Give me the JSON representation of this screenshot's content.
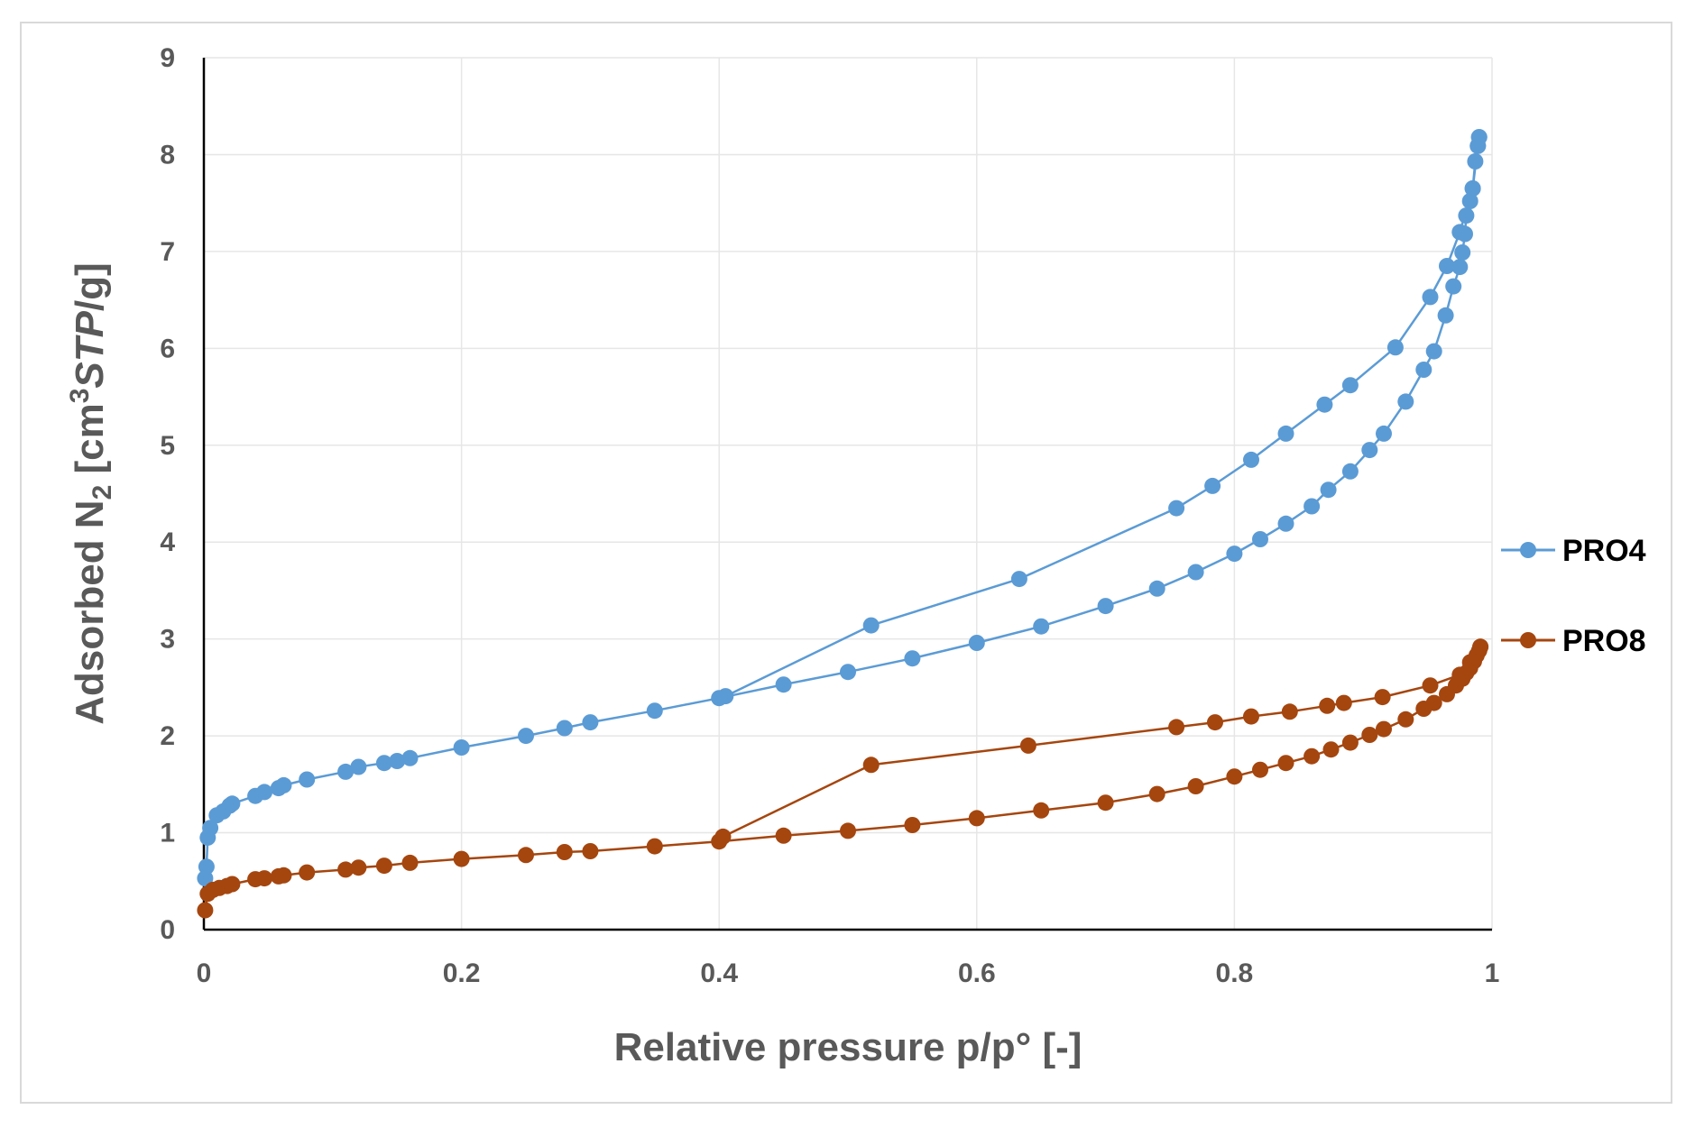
{
  "chart_data": {
    "type": "line",
    "title": "",
    "xlabel": "Relative pressure p/p° [-]",
    "ylabel_main": "Adsorbed N",
    "ylabel_sub": "2",
    "ylabel_unit_open": " [cm",
    "ylabel_sup": "3",
    "ylabel_italic": "STP",
    "ylabel_unit_close": "/g]",
    "xlim": [
      0,
      1
    ],
    "ylim": [
      0,
      9
    ],
    "xticks": [
      "0",
      "0.2",
      "0.4",
      "0.6",
      "0.8",
      "1"
    ],
    "xtick_values": [
      0,
      0.2,
      0.4,
      0.6,
      0.8,
      1
    ],
    "yticks": [
      "0",
      "1",
      "2",
      "3",
      "4",
      "5",
      "6",
      "7",
      "8",
      "9"
    ],
    "ytick_values": [
      0,
      1,
      2,
      3,
      4,
      5,
      6,
      7,
      8,
      9
    ],
    "grid": true,
    "legend": "right",
    "series": [
      {
        "name": "PRO4",
        "color": "#5b9bd5",
        "points": [
          [
            0.001,
            0.53
          ],
          [
            0.002,
            0.65
          ],
          [
            0.003,
            0.95
          ],
          [
            0.005,
            1.05
          ],
          [
            0.01,
            1.18
          ],
          [
            0.015,
            1.22
          ],
          [
            0.02,
            1.28
          ],
          [
            0.022,
            1.3
          ],
          [
            0.04,
            1.38
          ],
          [
            0.047,
            1.42
          ],
          [
            0.058,
            1.46
          ],
          [
            0.062,
            1.49
          ],
          [
            0.08,
            1.55
          ],
          [
            0.11,
            1.63
          ],
          [
            0.12,
            1.68
          ],
          [
            0.14,
            1.72
          ],
          [
            0.15,
            1.74
          ],
          [
            0.16,
            1.77
          ],
          [
            0.2,
            1.88
          ],
          [
            0.25,
            2.0
          ],
          [
            0.28,
            2.08
          ],
          [
            0.3,
            2.14
          ],
          [
            0.35,
            2.26
          ],
          [
            0.4,
            2.39
          ],
          [
            0.45,
            2.53
          ],
          [
            0.5,
            2.66
          ],
          [
            0.55,
            2.8
          ],
          [
            0.6,
            2.96
          ],
          [
            0.65,
            3.13
          ],
          [
            0.7,
            3.34
          ],
          [
            0.74,
            3.52
          ],
          [
            0.77,
            3.69
          ],
          [
            0.8,
            3.88
          ],
          [
            0.82,
            4.03
          ],
          [
            0.84,
            4.19
          ],
          [
            0.86,
            4.37
          ],
          [
            0.873,
            4.54
          ],
          [
            0.89,
            4.73
          ],
          [
            0.905,
            4.95
          ],
          [
            0.916,
            5.12
          ],
          [
            0.933,
            5.45
          ],
          [
            0.947,
            5.78
          ],
          [
            0.955,
            5.97
          ],
          [
            0.964,
            6.34
          ],
          [
            0.97,
            6.64
          ],
          [
            0.975,
            6.84
          ],
          [
            0.977,
            6.99
          ],
          [
            0.979,
            7.18
          ],
          [
            0.98,
            7.37
          ],
          [
            0.983,
            7.52
          ],
          [
            0.985,
            7.65
          ],
          [
            0.987,
            7.93
          ],
          [
            0.989,
            8.09
          ],
          [
            0.99,
            8.18
          ],
          [
            0.99,
            8.18
          ],
          [
            0.989,
            8.09
          ],
          [
            0.985,
            7.65
          ],
          [
            0.975,
            7.2
          ],
          [
            0.965,
            6.85
          ],
          [
            0.952,
            6.53
          ],
          [
            0.925,
            6.01
          ],
          [
            0.89,
            5.62
          ],
          [
            0.87,
            5.42
          ],
          [
            0.84,
            5.12
          ],
          [
            0.813,
            4.85
          ],
          [
            0.783,
            4.58
          ],
          [
            0.755,
            4.35
          ],
          [
            0.633,
            3.62
          ],
          [
            0.518,
            3.14
          ],
          [
            0.405,
            2.41
          ]
        ]
      },
      {
        "name": "PRO8",
        "color": "#a5460f",
        "points": [
          [
            0.001,
            0.2
          ],
          [
            0.003,
            0.37
          ],
          [
            0.007,
            0.41
          ],
          [
            0.012,
            0.43
          ],
          [
            0.018,
            0.45
          ],
          [
            0.022,
            0.47
          ],
          [
            0.04,
            0.52
          ],
          [
            0.047,
            0.53
          ],
          [
            0.058,
            0.55
          ],
          [
            0.062,
            0.56
          ],
          [
            0.08,
            0.59
          ],
          [
            0.11,
            0.62
          ],
          [
            0.12,
            0.64
          ],
          [
            0.14,
            0.66
          ],
          [
            0.16,
            0.69
          ],
          [
            0.2,
            0.73
          ],
          [
            0.25,
            0.77
          ],
          [
            0.28,
            0.8
          ],
          [
            0.3,
            0.81
          ],
          [
            0.35,
            0.86
          ],
          [
            0.4,
            0.91
          ],
          [
            0.45,
            0.97
          ],
          [
            0.5,
            1.02
          ],
          [
            0.55,
            1.08
          ],
          [
            0.6,
            1.15
          ],
          [
            0.65,
            1.23
          ],
          [
            0.7,
            1.31
          ],
          [
            0.74,
            1.4
          ],
          [
            0.77,
            1.48
          ],
          [
            0.8,
            1.58
          ],
          [
            0.82,
            1.65
          ],
          [
            0.84,
            1.72
          ],
          [
            0.86,
            1.79
          ],
          [
            0.875,
            1.86
          ],
          [
            0.89,
            1.93
          ],
          [
            0.905,
            2.01
          ],
          [
            0.916,
            2.07
          ],
          [
            0.933,
            2.17
          ],
          [
            0.947,
            2.28
          ],
          [
            0.955,
            2.34
          ],
          [
            0.965,
            2.43
          ],
          [
            0.972,
            2.52
          ],
          [
            0.977,
            2.59
          ],
          [
            0.98,
            2.65
          ],
          [
            0.983,
            2.7
          ],
          [
            0.986,
            2.77
          ],
          [
            0.988,
            2.83
          ],
          [
            0.99,
            2.88
          ],
          [
            0.991,
            2.92
          ],
          [
            0.991,
            2.92
          ],
          [
            0.983,
            2.76
          ],
          [
            0.975,
            2.63
          ],
          [
            0.952,
            2.52
          ],
          [
            0.915,
            2.4
          ],
          [
            0.885,
            2.34
          ],
          [
            0.872,
            2.31
          ],
          [
            0.843,
            2.25
          ],
          [
            0.813,
            2.2
          ],
          [
            0.785,
            2.14
          ],
          [
            0.755,
            2.09
          ],
          [
            0.64,
            1.9
          ],
          [
            0.518,
            1.7
          ],
          [
            0.403,
            0.96
          ]
        ]
      }
    ]
  },
  "legend": {
    "items": [
      {
        "label": "PRO4"
      },
      {
        "label": "PRO8"
      }
    ]
  }
}
